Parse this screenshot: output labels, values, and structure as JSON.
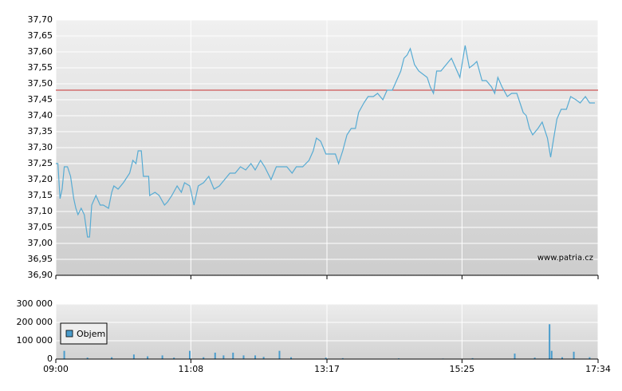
{
  "chart_data": [
    {
      "type": "line",
      "color": "#57abd3",
      "ref_line": 37.48,
      "ref_color": "#c83232",
      "watermark": "www.patria.cz",
      "ylim": [
        36.9,
        37.7
      ],
      "yticks": [
        {
          "value": 36.9,
          "label": "36,90"
        },
        {
          "value": 36.95,
          "label": "36,95"
        },
        {
          "value": 37.0,
          "label": "37,00"
        },
        {
          "value": 37.05,
          "label": "37,05"
        },
        {
          "value": 37.1,
          "label": "37,10"
        },
        {
          "value": 37.15,
          "label": "37,15"
        },
        {
          "value": 37.2,
          "label": "37,20"
        },
        {
          "value": 37.25,
          "label": "37,25"
        },
        {
          "value": 37.3,
          "label": "37,30"
        },
        {
          "value": 37.35,
          "label": "37,35"
        },
        {
          "value": 37.4,
          "label": "37,40"
        },
        {
          "value": 37.45,
          "label": "37,45"
        },
        {
          "value": 37.5,
          "label": "37,50"
        },
        {
          "value": 37.55,
          "label": "37,55"
        },
        {
          "value": 37.6,
          "label": "37,60"
        },
        {
          "value": 37.65,
          "label": "37,65"
        },
        {
          "value": 37.7,
          "label": "37,70"
        }
      ],
      "x": [
        "09:00",
        "09:02",
        "09:04",
        "09:06",
        "09:08",
        "09:11",
        "09:14",
        "09:17",
        "09:19",
        "09:21",
        "09:24",
        "09:27",
        "09:30",
        "09:32",
        "09:34",
        "09:38",
        "09:42",
        "09:45",
        "09:50",
        "09:53",
        "09:55",
        "09:59",
        "10:04",
        "10:10",
        "10:13",
        "10:16",
        "10:18",
        "10:21",
        "10:23",
        "10:28",
        "10:29",
        "10:34",
        "10:38",
        "10:43",
        "10:46",
        "10:50",
        "10:55",
        "10:59",
        "11:02",
        "11:07",
        "11:11",
        "11:15",
        "11:20",
        "11:25",
        "11:30",
        "11:35",
        "11:40",
        "11:45",
        "11:50",
        "11:55",
        "12:00",
        "12:05",
        "12:09",
        "12:14",
        "12:18",
        "12:24",
        "12:29",
        "12:33",
        "12:39",
        "12:44",
        "12:48",
        "12:54",
        "13:00",
        "13:04",
        "13:07",
        "13:11",
        "13:16",
        "13:20",
        "13:25",
        "13:28",
        "13:32",
        "13:36",
        "13:40",
        "13:44",
        "13:47",
        "13:52",
        "13:56",
        "14:01",
        "14:05",
        "14:10",
        "14:14",
        "14:19",
        "14:23",
        "14:27",
        "14:30",
        "14:33",
        "14:36",
        "14:40",
        "14:44",
        "14:48",
        "14:52",
        "14:55",
        "14:58",
        "15:01",
        "15:05",
        "15:10",
        "15:15",
        "15:19",
        "15:23",
        "15:25",
        "15:28",
        "15:32",
        "15:36",
        "15:39",
        "15:44",
        "15:48",
        "15:53",
        "15:56",
        "15:59",
        "16:03",
        "16:08",
        "16:12",
        "16:17",
        "16:20",
        "16:23",
        "16:26",
        "16:29",
        "16:32",
        "16:37",
        "16:41",
        "16:46",
        "16:49",
        "16:52",
        "16:55",
        "16:59",
        "17:04",
        "17:08",
        "17:13",
        "17:17",
        "17:22",
        "17:26",
        "17:31"
      ],
      "values": [
        37.25,
        37.25,
        37.14,
        37.17,
        37.24,
        37.24,
        37.21,
        37.14,
        37.11,
        37.09,
        37.11,
        37.09,
        37.02,
        37.02,
        37.12,
        37.15,
        37.12,
        37.12,
        37.11,
        37.16,
        37.18,
        37.17,
        37.19,
        37.22,
        37.26,
        37.25,
        37.29,
        37.29,
        37.21,
        37.21,
        37.15,
        37.16,
        37.15,
        37.12,
        37.13,
        37.15,
        37.18,
        37.16,
        37.19,
        37.18,
        37.12,
        37.18,
        37.19,
        37.21,
        37.17,
        37.18,
        37.2,
        37.22,
        37.22,
        37.24,
        37.23,
        37.25,
        37.23,
        37.26,
        37.24,
        37.2,
        37.24,
        37.24,
        37.24,
        37.22,
        37.24,
        37.24,
        37.26,
        37.29,
        37.33,
        37.32,
        37.28,
        37.28,
        37.28,
        37.25,
        37.29,
        37.34,
        37.36,
        37.36,
        37.41,
        37.44,
        37.46,
        37.46,
        37.47,
        37.45,
        37.48,
        37.48,
        37.51,
        37.54,
        37.58,
        37.59,
        37.61,
        37.56,
        37.54,
        37.53,
        37.52,
        37.49,
        37.47,
        37.54,
        37.54,
        37.56,
        37.58,
        37.55,
        37.52,
        37.56,
        37.62,
        37.55,
        37.56,
        37.57,
        37.51,
        37.51,
        37.49,
        37.47,
        37.52,
        37.49,
        37.46,
        37.47,
        37.47,
        37.44,
        37.41,
        37.4,
        37.36,
        37.34,
        37.36,
        37.38,
        37.33,
        37.27,
        37.33,
        37.39,
        37.42,
        37.42,
        37.46,
        37.45,
        37.44,
        37.46,
        37.44,
        37.44
      ]
    },
    {
      "type": "bar",
      "xlim": [
        "09:00",
        "17:34"
      ],
      "xticks": [
        "09:00",
        "11:08",
        "13:17",
        "15:25",
        "17:34"
      ],
      "ylim": [
        0,
        300000
      ],
      "yticks": [
        0,
        {
          "value": 100000,
          "label": "100 000"
        },
        {
          "value": 200000,
          "label": "200 000"
        },
        {
          "value": 300000,
          "label": "300 000"
        }
      ],
      "series": [
        {
          "name": "Objem",
          "color": "#4a9ccc",
          "x": [
            "09:08",
            "09:30",
            "09:53",
            "10:14",
            "10:27",
            "10:41",
            "10:52",
            "11:07",
            "11:20",
            "11:31",
            "11:39",
            "11:48",
            "11:58",
            "12:09",
            "12:17",
            "12:32",
            "12:43",
            "13:16",
            "13:32",
            "14:25",
            "15:07",
            "15:35",
            "16:15",
            "16:34",
            "16:48",
            "16:50",
            "17:00",
            "17:11",
            "17:26"
          ],
          "values": [
            45000,
            8000,
            10000,
            25000,
            15000,
            20000,
            8000,
            45000,
            10000,
            35000,
            20000,
            35000,
            20000,
            20000,
            12000,
            45000,
            10000,
            8000,
            5000,
            4000,
            3000,
            5000,
            30000,
            8000,
            190000,
            45000,
            10000,
            40000,
            10000
          ]
        }
      ]
    }
  ]
}
